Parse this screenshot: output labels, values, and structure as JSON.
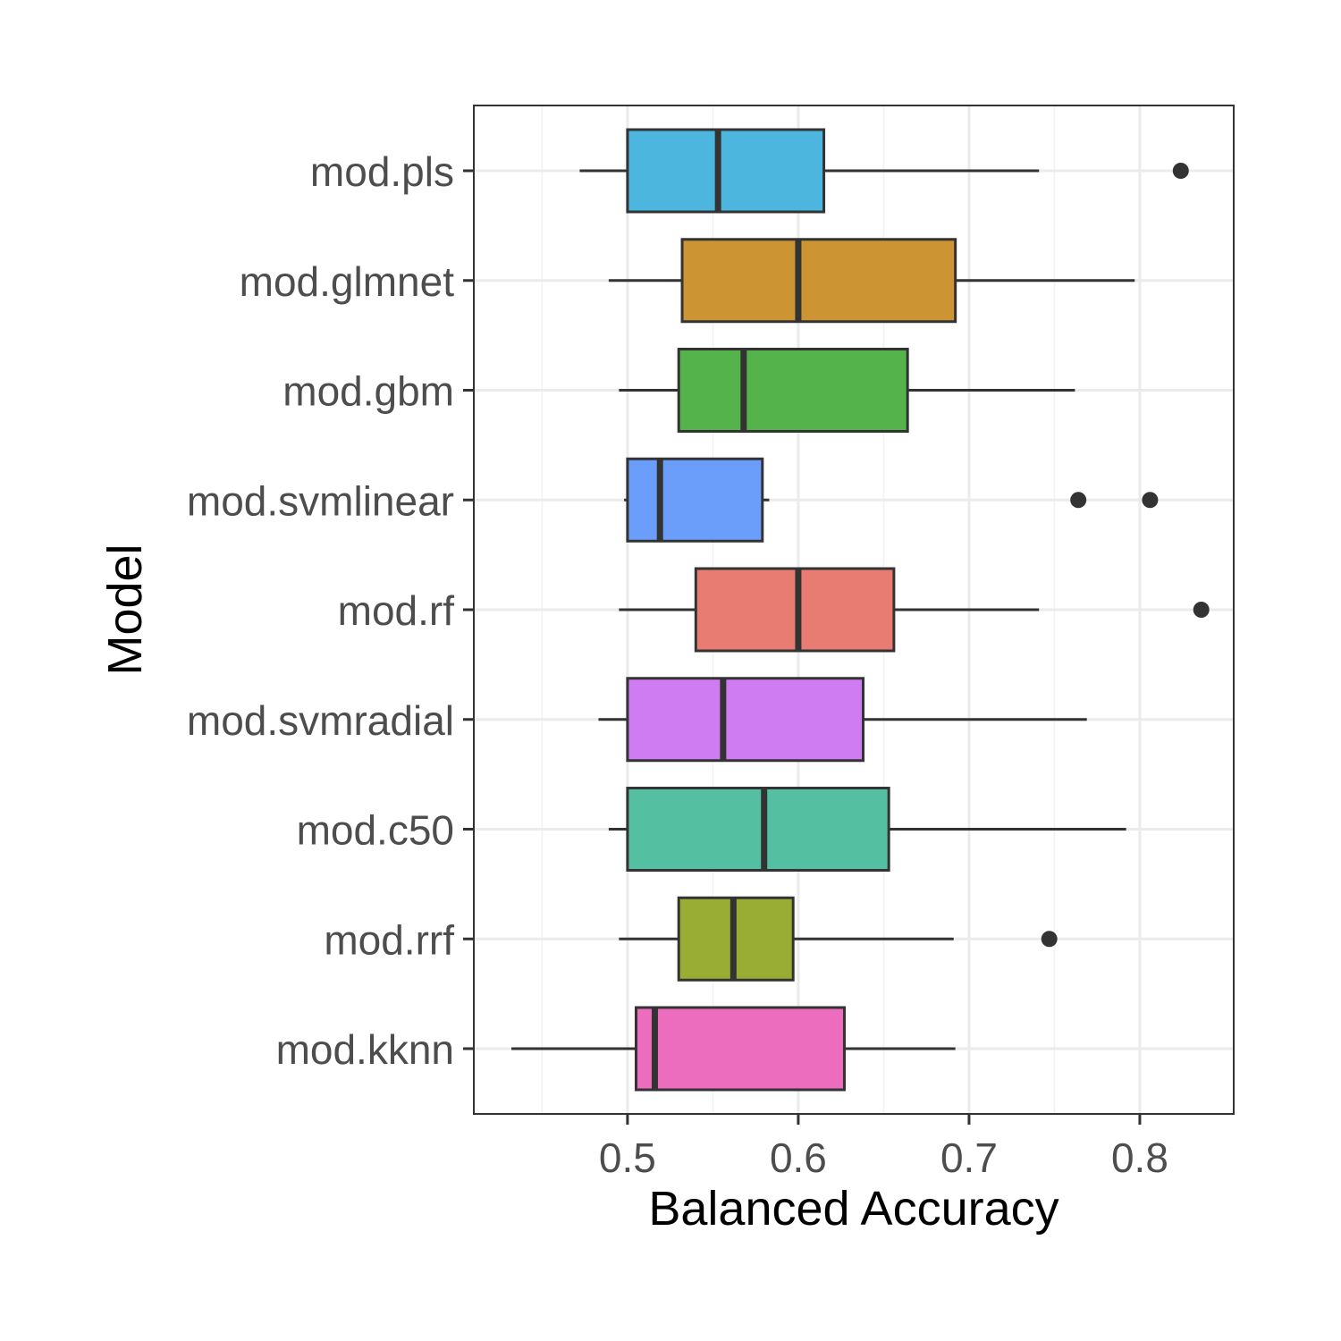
{
  "chart_data": {
    "type": "boxplot",
    "xlabel": "Balanced Accuracy",
    "ylabel": "Model",
    "xlim": [
      0.41,
      0.855
    ],
    "xticks": [
      0.5,
      0.6,
      0.7,
      0.8
    ],
    "xtick_labels": [
      "0.5",
      "0.6",
      "0.7",
      "0.8"
    ],
    "grid": true,
    "legend": "none",
    "categories": [
      "mod.pls",
      "mod.glmnet",
      "mod.gbm",
      "mod.svmlinear",
      "mod.rf",
      "mod.svmradial",
      "mod.c50",
      "mod.rrf",
      "mod.kknn"
    ],
    "series": [
      {
        "category": "mod.pls",
        "color": "#4DB6DE",
        "whisker_low": 0.472,
        "q1": 0.5,
        "median": 0.553,
        "q3": 0.615,
        "whisker_high": 0.741,
        "outliers": [
          0.824
        ]
      },
      {
        "category": "mod.glmnet",
        "color": "#CC9433",
        "whisker_low": 0.489,
        "q1": 0.532,
        "median": 0.6,
        "q3": 0.692,
        "whisker_high": 0.797,
        "outliers": []
      },
      {
        "category": "mod.gbm",
        "color": "#54B34A",
        "whisker_low": 0.495,
        "q1": 0.53,
        "median": 0.568,
        "q3": 0.664,
        "whisker_high": 0.762,
        "outliers": []
      },
      {
        "category": "mod.svmlinear",
        "color": "#6A9EFA",
        "whisker_low": 0.498,
        "q1": 0.5,
        "median": 0.519,
        "q3": 0.579,
        "whisker_high": 0.583,
        "outliers": [
          0.764,
          0.806
        ]
      },
      {
        "category": "mod.rf",
        "color": "#E97C72",
        "whisker_low": 0.495,
        "q1": 0.54,
        "median": 0.6,
        "q3": 0.656,
        "whisker_high": 0.741,
        "outliers": [
          0.836
        ]
      },
      {
        "category": "mod.svmradial",
        "color": "#CF7BF2",
        "whisker_low": 0.483,
        "q1": 0.5,
        "median": 0.556,
        "q3": 0.638,
        "whisker_high": 0.769,
        "outliers": []
      },
      {
        "category": "mod.c50",
        "color": "#55BFA2",
        "whisker_low": 0.489,
        "q1": 0.5,
        "median": 0.58,
        "q3": 0.653,
        "whisker_high": 0.792,
        "outliers": []
      },
      {
        "category": "mod.rrf",
        "color": "#99AD35",
        "whisker_low": 0.495,
        "q1": 0.53,
        "median": 0.562,
        "q3": 0.597,
        "whisker_high": 0.691,
        "outliers": [
          0.747
        ]
      },
      {
        "category": "mod.kknn",
        "color": "#EC6DBE",
        "whisker_low": 0.432,
        "q1": 0.505,
        "median": 0.516,
        "q3": 0.627,
        "whisker_high": 0.692,
        "outliers": []
      }
    ]
  }
}
